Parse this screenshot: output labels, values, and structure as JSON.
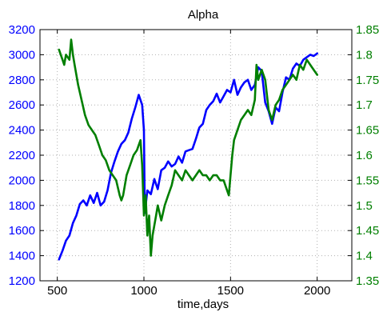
{
  "chart_data": {
    "type": "line",
    "title": "Alpha",
    "xlabel": "time,days",
    "ylabel": "",
    "grid": true,
    "xlim": [
      400,
      2200
    ],
    "xticks": [
      500,
      1000,
      1500,
      2000
    ],
    "left_axis": {
      "ylim": [
        1200,
        3200
      ],
      "ticks": [
        1200,
        1400,
        1600,
        1800,
        2000,
        2200,
        2400,
        2600,
        2800,
        3000,
        3200
      ],
      "color": "#0000ff"
    },
    "right_axis": {
      "ylim": [
        1.35,
        1.85
      ],
      "ticks": [
        "1.35",
        "1.4",
        "1.45",
        "1.5",
        "1.55",
        "1.6",
        "1.65",
        "1.7",
        "1.75",
        "1.8",
        "1.85"
      ],
      "color": "#007f00"
    },
    "series": [
      {
        "axis": "left",
        "color": "#0000ff",
        "x": [
          510,
          530,
          550,
          570,
          590,
          610,
          630,
          650,
          670,
          690,
          710,
          730,
          750,
          770,
          790,
          810,
          830,
          850,
          870,
          890,
          910,
          930,
          950,
          970,
          990,
          1000,
          1005,
          1020,
          1040,
          1060,
          1080,
          1100,
          1120,
          1140,
          1160,
          1180,
          1200,
          1220,
          1240,
          1260,
          1280,
          1300,
          1320,
          1340,
          1360,
          1380,
          1400,
          1420,
          1440,
          1460,
          1480,
          1500,
          1520,
          1540,
          1560,
          1580,
          1600,
          1620,
          1640,
          1660,
          1680,
          1700,
          1720,
          1740,
          1760,
          1780,
          1800,
          1820,
          1840,
          1860,
          1880,
          1900,
          1920,
          1940,
          1960,
          1980,
          2000
        ],
        "y": [
          1370,
          1440,
          1520,
          1560,
          1660,
          1720,
          1810,
          1840,
          1800,
          1880,
          1820,
          1900,
          1800,
          1830,
          1920,
          2060,
          2150,
          2230,
          2290,
          2320,
          2380,
          2490,
          2580,
          2680,
          2600,
          2400,
          1740,
          1920,
          1890,
          2010,
          1930,
          2080,
          2100,
          2150,
          2110,
          2130,
          2190,
          2140,
          2230,
          2240,
          2250,
          2330,
          2420,
          2450,
          2560,
          2600,
          2630,
          2690,
          2620,
          2670,
          2720,
          2700,
          2800,
          2680,
          2740,
          2780,
          2800,
          2720,
          2760,
          2900,
          2870,
          2620,
          2550,
          2450,
          2580,
          2550,
          2700,
          2820,
          2800,
          2890,
          2930,
          2910,
          2960,
          2980,
          3000,
          2990,
          3010
        ]
      },
      {
        "axis": "right",
        "color": "#007f00",
        "x": [
          510,
          520,
          530,
          540,
          550,
          570,
          580,
          590,
          600,
          620,
          640,
          660,
          680,
          700,
          720,
          740,
          760,
          780,
          800,
          820,
          840,
          860,
          870,
          880,
          900,
          920,
          940,
          960,
          980,
          990,
          1000,
          1010,
          1020,
          1030,
          1040,
          1050,
          1060,
          1070,
          1080,
          1100,
          1120,
          1140,
          1160,
          1180,
          1200,
          1220,
          1240,
          1260,
          1280,
          1300,
          1320,
          1340,
          1360,
          1380,
          1400,
          1420,
          1440,
          1460,
          1480,
          1490,
          1500,
          1510,
          1520,
          1540,
          1560,
          1580,
          1600,
          1620,
          1640,
          1650,
          1660,
          1680,
          1700,
          1720,
          1740,
          1760,
          1780,
          1800,
          1820,
          1840,
          1860,
          1880,
          1900,
          1920,
          1940,
          1960,
          1980,
          2000
        ],
        "y": [
          1.81,
          1.8,
          1.79,
          1.78,
          1.8,
          1.79,
          1.83,
          1.8,
          1.78,
          1.74,
          1.71,
          1.68,
          1.66,
          1.65,
          1.64,
          1.62,
          1.6,
          1.59,
          1.57,
          1.56,
          1.55,
          1.52,
          1.51,
          1.52,
          1.56,
          1.58,
          1.6,
          1.61,
          1.63,
          1.58,
          1.48,
          1.52,
          1.44,
          1.48,
          1.4,
          1.44,
          1.46,
          1.48,
          1.5,
          1.47,
          1.5,
          1.52,
          1.54,
          1.57,
          1.56,
          1.55,
          1.57,
          1.56,
          1.55,
          1.56,
          1.57,
          1.56,
          1.56,
          1.55,
          1.56,
          1.56,
          1.55,
          1.55,
          1.53,
          1.52,
          1.56,
          1.6,
          1.63,
          1.65,
          1.67,
          1.68,
          1.69,
          1.68,
          1.71,
          1.78,
          1.75,
          1.77,
          1.75,
          1.69,
          1.67,
          1.7,
          1.71,
          1.73,
          1.74,
          1.75,
          1.76,
          1.75,
          1.78,
          1.77,
          1.79,
          1.78,
          1.77,
          1.76
        ]
      }
    ]
  }
}
